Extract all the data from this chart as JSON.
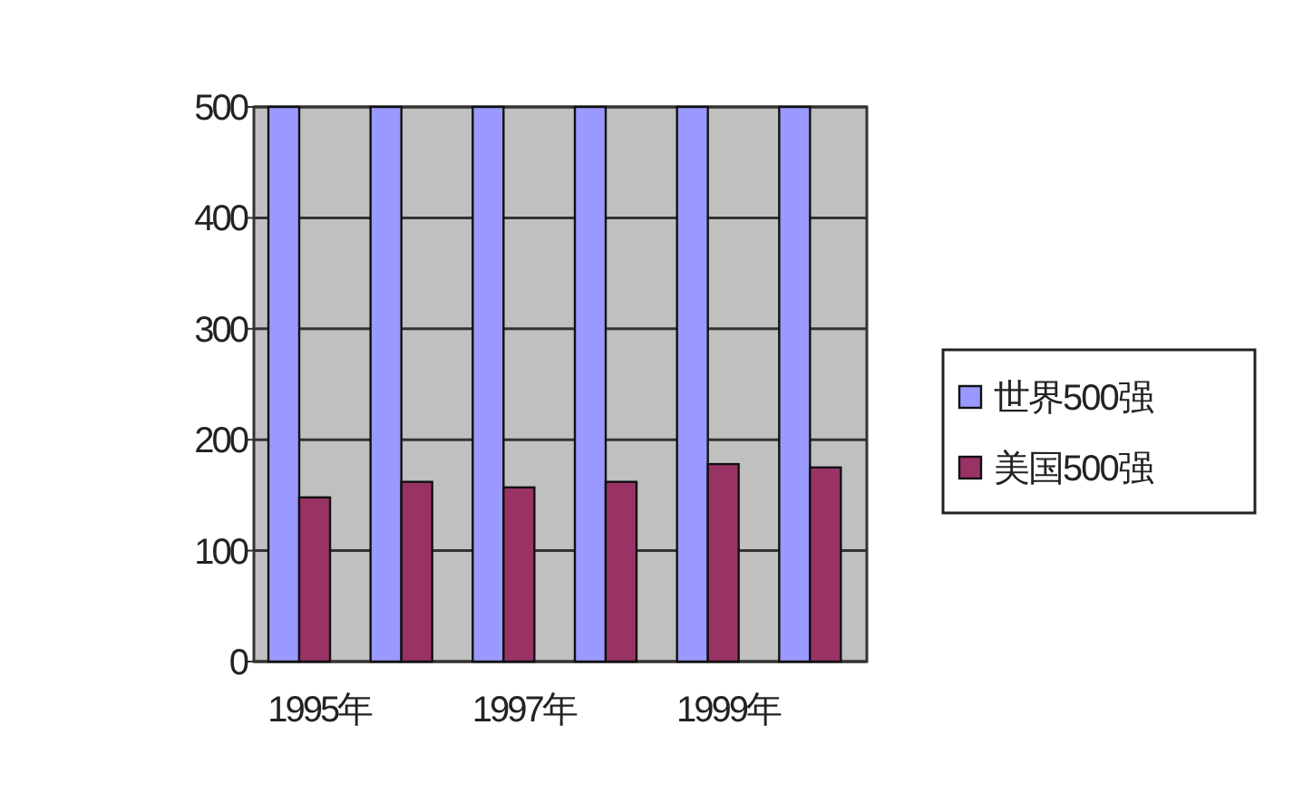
{
  "chart_data": {
    "type": "bar",
    "categories": [
      "1995年",
      null,
      "1997年",
      null,
      "1999年",
      null
    ],
    "series": [
      {
        "name": "世界500强",
        "color": "#9999ff",
        "values": [
          500,
          500,
          500,
          500,
          500,
          500
        ]
      },
      {
        "name": "美国500强",
        "color": "#993366",
        "values": [
          148,
          162,
          157,
          162,
          178,
          175
        ]
      }
    ],
    "ylim": [
      0,
      500
    ],
    "yticks": [
      0,
      100,
      200,
      300,
      400,
      500
    ],
    "grid": "y",
    "legend": "right"
  }
}
